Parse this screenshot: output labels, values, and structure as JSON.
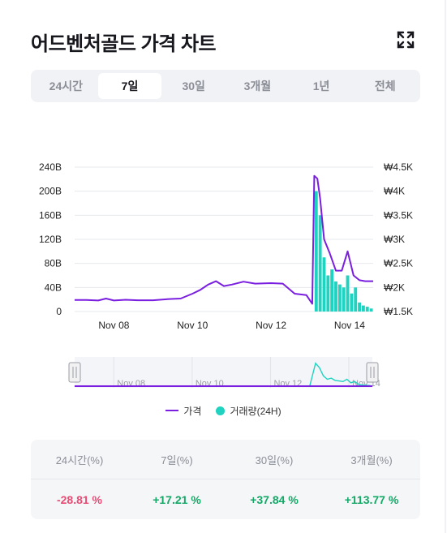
{
  "title": "어드벤처골드 가격 차트",
  "tabs": [
    {
      "label": "24시간",
      "active": false
    },
    {
      "label": "7일",
      "active": true
    },
    {
      "label": "30일",
      "active": false
    },
    {
      "label": "3개월",
      "active": false
    },
    {
      "label": "1년",
      "active": false
    },
    {
      "label": "전체",
      "active": false
    }
  ],
  "legend": {
    "price": "가격",
    "volume": "거래량(24H)"
  },
  "stats": {
    "headers": [
      "24시간(%)",
      "7일(%)",
      "30일(%)",
      "3개월(%)"
    ],
    "values": [
      "-28.81 %",
      "+17.21 %",
      "+37.84 %",
      "+113.77 %"
    ]
  },
  "colors": {
    "price": "#7a1fe0",
    "volume": "#1fd3c0",
    "negative": "#e84a74",
    "positive": "#12a866"
  },
  "chart_data": {
    "type": "line",
    "x_labels": [
      "Nov 08",
      "Nov 10",
      "Nov 12",
      "Nov 14"
    ],
    "y_left_labels": [
      "240B",
      "200B",
      "160B",
      "120B",
      "80B",
      "40B",
      "0"
    ],
    "y_right_labels": [
      "₩4.5K",
      "₩4K",
      "₩3.5K",
      "₩3K",
      "₩2.5K",
      "₩2K",
      "₩1.5K"
    ],
    "navigator_labels": [
      "Nov 08",
      "Nov 10",
      "Nov 12",
      "Nov 14"
    ],
    "price_ylim": [
      1500,
      4500
    ],
    "volume_ylim": [
      0,
      240
    ],
    "series": [
      {
        "name": "가격",
        "axis": "right",
        "x": [
          7.0,
          7.3,
          7.6,
          7.8,
          8.0,
          8.3,
          8.6,
          9.0,
          9.4,
          9.7,
          10.0,
          10.2,
          10.4,
          10.6,
          10.8,
          11.0,
          11.3,
          11.6,
          12.0,
          12.3,
          12.6,
          12.9,
          13.05,
          13.1,
          13.18,
          13.25,
          13.35,
          13.5,
          13.65,
          13.8,
          13.95,
          14.1,
          14.25,
          14.4,
          14.6
        ],
        "values": [
          1740,
          1740,
          1730,
          1770,
          1730,
          1745,
          1735,
          1735,
          1760,
          1770,
          1870,
          1950,
          2060,
          2130,
          2030,
          2060,
          2120,
          2080,
          2090,
          2080,
          1870,
          1840,
          1660,
          4320,
          4260,
          3850,
          3000,
          2700,
          2350,
          2350,
          2750,
          2250,
          2150,
          2130,
          2130
        ]
      },
      {
        "name": "거래량(24H)",
        "axis": "left",
        "type": "bar",
        "x": [
          13.15,
          13.25,
          13.35,
          13.45,
          13.55,
          13.65,
          13.75,
          13.85,
          13.95,
          14.05,
          14.15,
          14.25,
          14.35,
          14.45,
          14.55
        ],
        "values": [
          200,
          160,
          90,
          60,
          70,
          50,
          45,
          40,
          60,
          30,
          40,
          15,
          10,
          8,
          5
        ]
      }
    ],
    "xlim": [
      7.0,
      14.6
    ]
  }
}
